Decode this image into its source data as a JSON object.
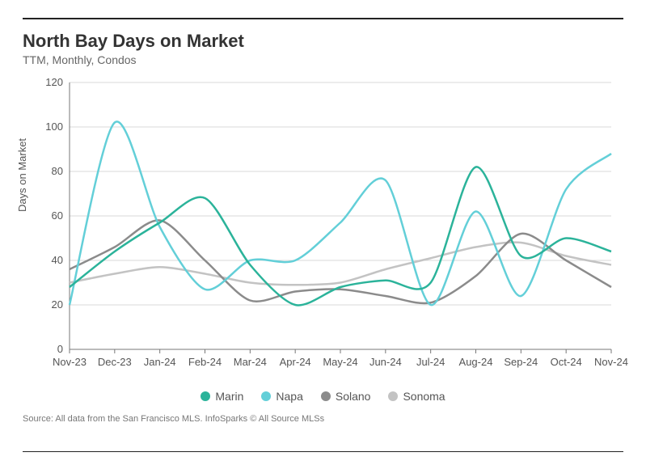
{
  "title": "North Bay Days on Market",
  "subtitle": "TTM, Monthly, Condos",
  "y_axis_label": "Days on Market",
  "source_text": "Source:  All data from the San Francisco MLS. InfoSparks © All Source MLSs",
  "chart": {
    "type": "line",
    "background_color": "#ffffff",
    "grid_color": "#d9d9d9",
    "axis_color": "#777777",
    "label_color": "#555555",
    "title_fontsize": 22,
    "label_fontsize": 13,
    "line_width": 2.5,
    "smoothing": 0.85,
    "y": {
      "min": 0,
      "max": 120,
      "ticks": [
        0,
        20,
        40,
        60,
        80,
        100,
        120
      ],
      "tick_labels": [
        "0",
        "20",
        "40",
        "60",
        "80",
        "100",
        "120"
      ]
    },
    "x": {
      "categories": [
        "Nov-23",
        "Dec-23",
        "Jan-24",
        "Feb-24",
        "Mar-24",
        "Apr-24",
        "May-24",
        "Jun-24",
        "Jul-24",
        "Aug-24",
        "Sep-24",
        "Oct-24",
        "Nov-24"
      ]
    },
    "series": [
      {
        "name": "Marin",
        "color": "#2bb39a",
        "values": [
          28,
          44,
          57,
          68,
          38,
          20,
          28,
          31,
          30,
          82,
          42,
          50,
          44
        ]
      },
      {
        "name": "Napa",
        "color": "#63cfd8",
        "values": [
          20,
          102,
          55,
          27,
          40,
          40,
          57,
          76,
          20,
          62,
          24,
          72,
          88
        ]
      },
      {
        "name": "Solano",
        "color": "#8b8b8b",
        "values": [
          36,
          46,
          58,
          40,
          22,
          26,
          27,
          24,
          21,
          33,
          52,
          40,
          28
        ]
      },
      {
        "name": "Sonoma",
        "color": "#c3c3c3",
        "values": [
          30,
          34,
          37,
          34,
          30,
          29,
          30,
          36,
          41,
          46,
          48,
          42,
          38
        ]
      }
    ]
  }
}
